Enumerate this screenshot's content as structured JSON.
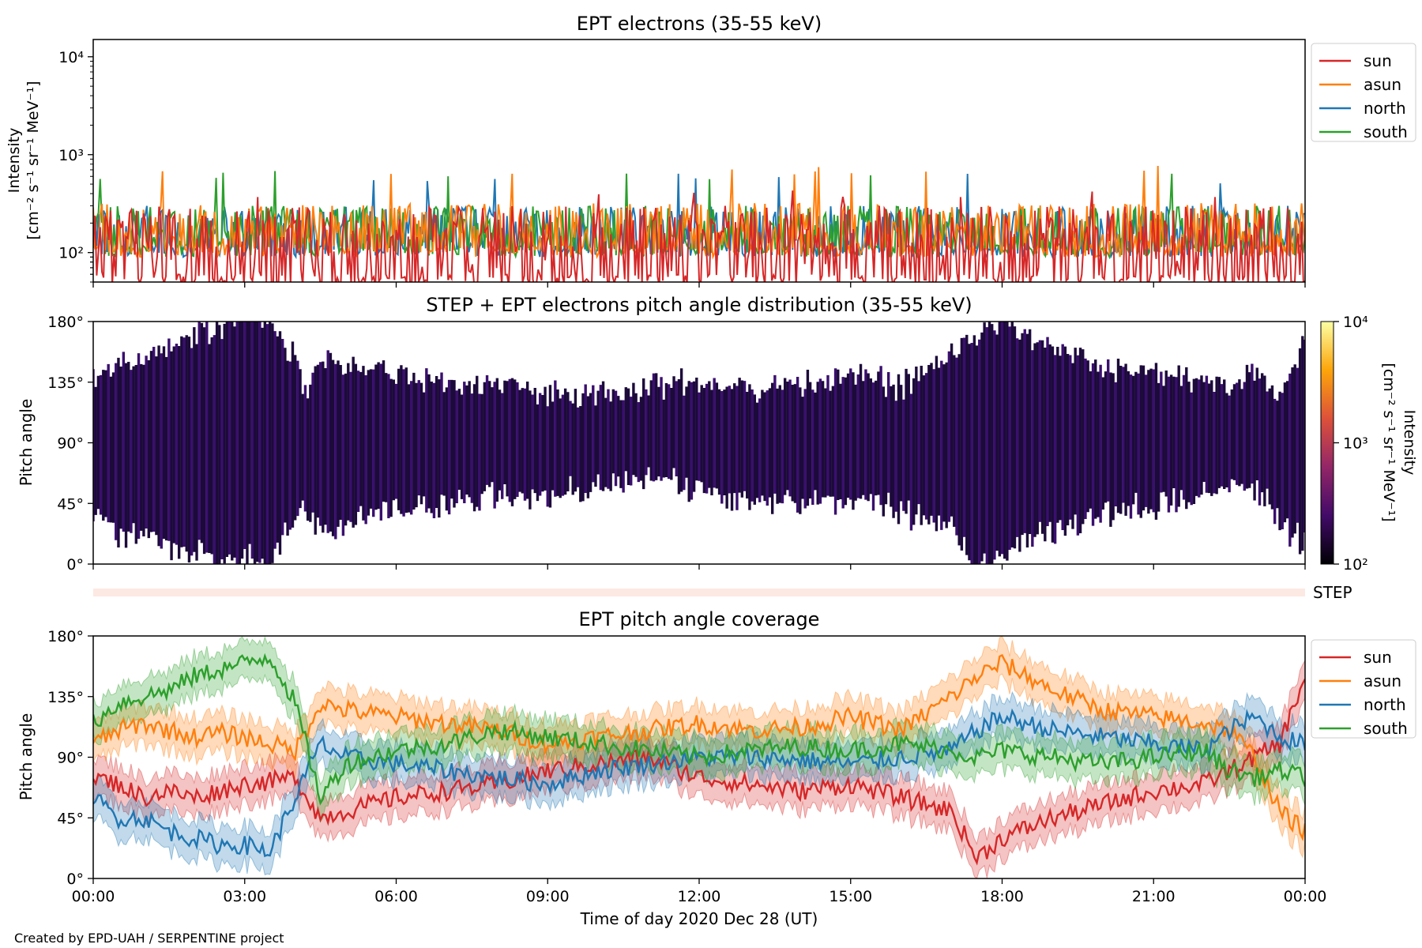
{
  "footer": "Created by EPD-UAH / SERPENTINE project",
  "colors": {
    "sun": "#d62728",
    "asun": "#ff7f0e",
    "north": "#1f77b4",
    "south": "#2ca02c",
    "step_band": "#fde9e3"
  },
  "x_ticks": [
    "00:00",
    "03:00",
    "06:00",
    "09:00",
    "12:00",
    "15:00",
    "18:00",
    "21:00",
    "00:00"
  ],
  "chart_data": [
    {
      "type": "line",
      "title": "EPT electrons (35-55 keV)",
      "ylabel_line1": "Intensity",
      "ylabel_line2": "[cm⁻² s⁻¹ sr⁻¹ MeV⁻¹]",
      "yscale": "log",
      "ylim": [
        50,
        15000
      ],
      "xlim_hours": [
        0,
        24
      ],
      "yticks": [
        {
          "value": 100,
          "label": "10²"
        },
        {
          "value": 1000,
          "label": "10³"
        },
        {
          "value": 10000,
          "label": "10⁴"
        }
      ],
      "legend_location": "right, outside top",
      "series": [
        {
          "name": "sun",
          "typical_range": [
            50,
            300
          ],
          "peak": 450
        },
        {
          "name": "asun",
          "typical_range": [
            100,
            320
          ],
          "peak": 780
        },
        {
          "name": "north",
          "typical_range": [
            100,
            300
          ],
          "peak": 650
        },
        {
          "name": "south",
          "typical_range": [
            100,
            300
          ],
          "peak": 700
        }
      ]
    },
    {
      "type": "heatmap",
      "title": "STEP + EPT electrons pitch angle distribution (35-55 keV)",
      "ylabel": "Pitch angle",
      "ylim": [
        0,
        180
      ],
      "yticks": [
        "0°",
        "45°",
        "90°",
        "135°",
        "180°"
      ],
      "xlim_hours": [
        0,
        24
      ],
      "colorbar": {
        "label_line1": "Intensity",
        "label_line2": "[cm⁻² s⁻¹ sr⁻¹ MeV⁻¹]",
        "scale": "log",
        "range": [
          100,
          10000
        ],
        "ticks": [
          "10²",
          "10³",
          "10⁴"
        ],
        "colormap": "inferno"
      }
    },
    {
      "type": "band",
      "label": "STEP"
    },
    {
      "type": "line",
      "title": "EPT pitch angle coverage",
      "ylabel": "Pitch angle",
      "xlabel": "Time of day 2020 Dec 28 (UT)",
      "ylim": [
        0,
        180
      ],
      "yticks": [
        "0°",
        "45°",
        "90°",
        "135°",
        "180°"
      ],
      "xlim_hours": [
        0,
        24
      ],
      "legend_location": "right, outside top",
      "series": [
        {
          "name": "sun",
          "hours": [
            0,
            0.5,
            1,
            1.5,
            2,
            2.5,
            3,
            3.5,
            4,
            4.5,
            5,
            6,
            7,
            8,
            9,
            10,
            11,
            12,
            13,
            14,
            15,
            16,
            17,
            17.5,
            18,
            19,
            20,
            21,
            22,
            22.5,
            23,
            23.5,
            24
          ],
          "values": [
            75,
            70,
            60,
            65,
            60,
            65,
            70,
            72,
            75,
            45,
            50,
            60,
            65,
            70,
            80,
            85,
            90,
            75,
            70,
            65,
            70,
            60,
            50,
            15,
            30,
            45,
            55,
            65,
            70,
            80,
            90,
            100,
            150
          ]
        },
        {
          "name": "asun",
          "hours": [
            0,
            0.5,
            1,
            1.5,
            2,
            2.5,
            3,
            3.5,
            4,
            4.5,
            5,
            6,
            7,
            8,
            9,
            10,
            11,
            12,
            13,
            14,
            15,
            16,
            17,
            17.5,
            18,
            19,
            20,
            21,
            22,
            22.5,
            23,
            23.5,
            24
          ],
          "values": [
            100,
            110,
            115,
            110,
            105,
            108,
            105,
            100,
            95,
            130,
            125,
            120,
            115,
            110,
            100,
            105,
            110,
            115,
            110,
            112,
            120,
            110,
            135,
            150,
            160,
            140,
            125,
            120,
            115,
            110,
            90,
            50,
            35
          ]
        },
        {
          "name": "north",
          "hours": [
            0,
            0.5,
            1,
            1.5,
            2,
            2.5,
            3,
            3.5,
            4,
            4.5,
            5,
            6,
            7,
            8,
            9,
            10,
            11,
            12,
            13,
            14,
            15,
            16,
            17,
            17.5,
            18,
            19,
            20,
            21,
            22,
            22.5,
            23,
            23.5,
            24
          ],
          "values": [
            60,
            45,
            45,
            35,
            30,
            25,
            25,
            20,
            60,
            100,
            90,
            85,
            80,
            75,
            70,
            80,
            85,
            90,
            90,
            88,
            85,
            90,
            95,
            110,
            120,
            110,
            105,
            100,
            95,
            110,
            120,
            105,
            100
          ]
        },
        {
          "name": "south",
          "hours": [
            0,
            0.5,
            1,
            1.5,
            2,
            2.5,
            3,
            3.5,
            4,
            4.5,
            5,
            6,
            7,
            8,
            9,
            10,
            11,
            12,
            13,
            14,
            15,
            16,
            17,
            17.5,
            18,
            19,
            20,
            21,
            22,
            22.5,
            23,
            23.5,
            24
          ],
          "values": [
            115,
            130,
            135,
            140,
            150,
            155,
            160,
            165,
            130,
            60,
            85,
            95,
            100,
            110,
            105,
            100,
            95,
            90,
            95,
            98,
            95,
            100,
            95,
            90,
            95,
            90,
            85,
            90,
            95,
            80,
            75,
            80,
            75
          ]
        }
      ]
    }
  ]
}
